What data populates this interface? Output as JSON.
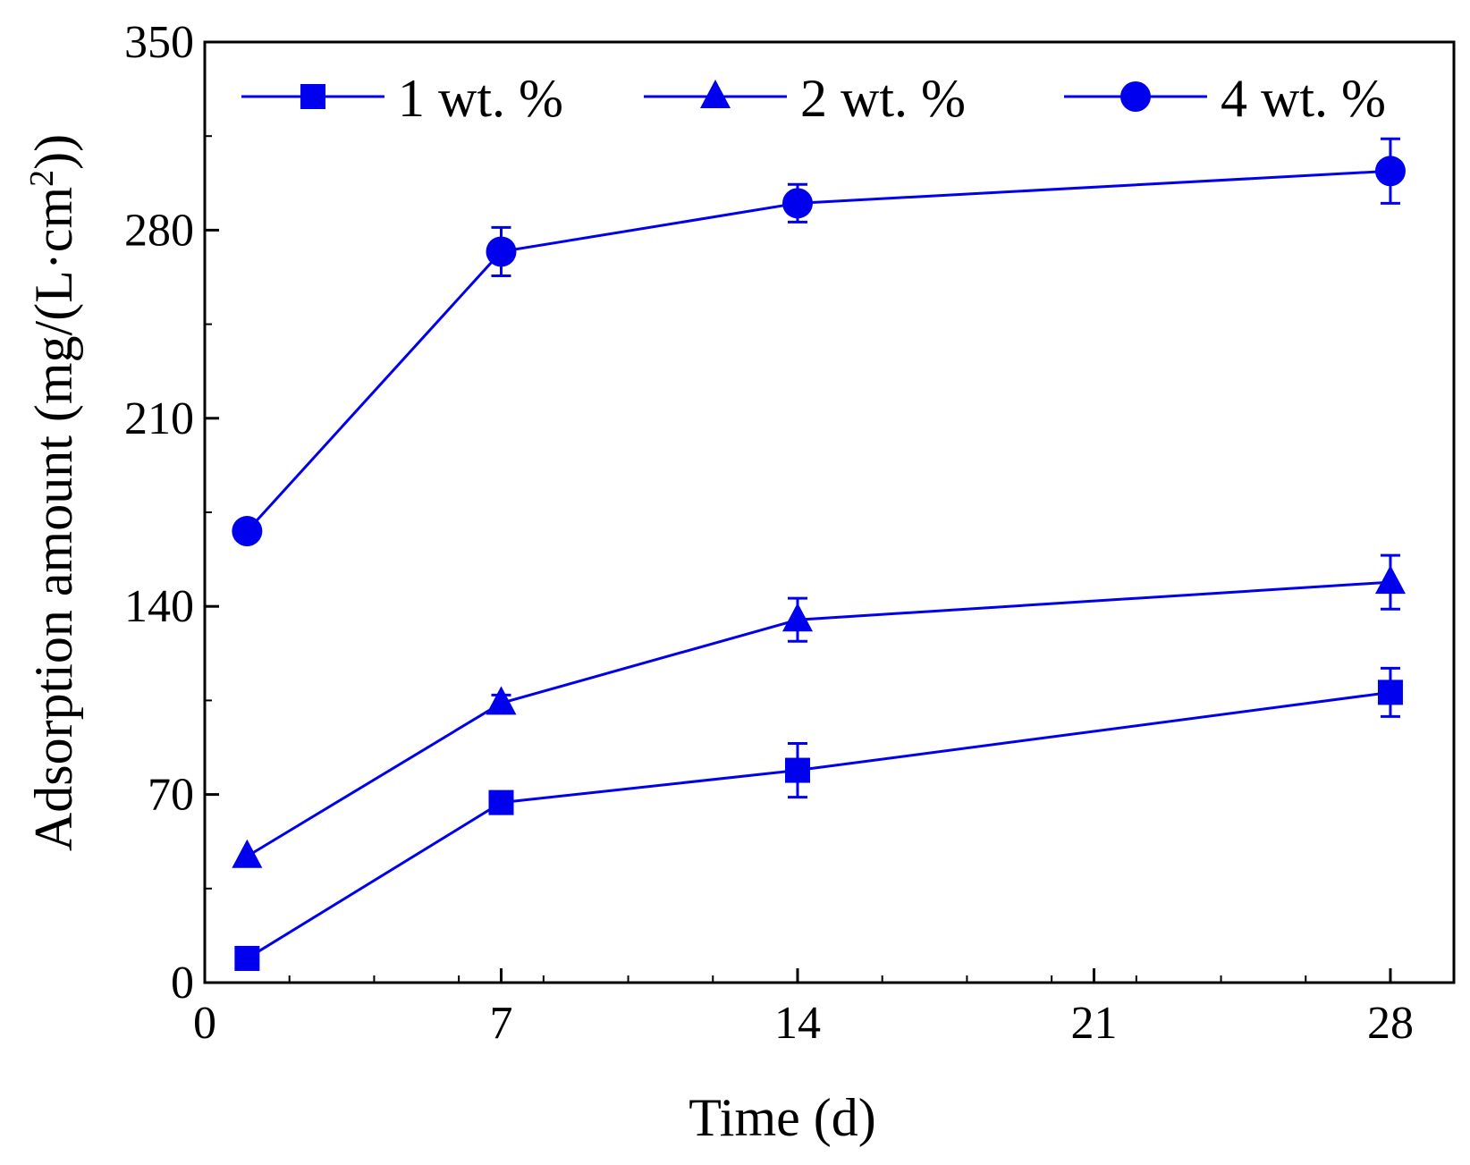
{
  "chart_data": {
    "type": "line",
    "title": "",
    "xlabel": "Time (d)",
    "ylabel": "Adsorption amount (mg/(L·cm²))",
    "ylabel_parts": {
      "before": "Adsorption amount (mg/(L",
      "dot": "·",
      "unit": "cm",
      "sup": "2",
      "after": "))"
    },
    "xlim": [
      0,
      29.5
    ],
    "ylim": [
      0,
      350
    ],
    "x_ticks": [
      0,
      7,
      14,
      21,
      28
    ],
    "x_tick_labels": [
      "0",
      "7",
      "14",
      "21",
      "28"
    ],
    "y_ticks": [
      0,
      70,
      140,
      210,
      280,
      350
    ],
    "y_tick_labels": [
      "0",
      "70",
      "140",
      "210",
      "280",
      "350"
    ],
    "x_minor_step": 2,
    "y_minor_step": 35,
    "grid": false,
    "legend_position": "top",
    "series": [
      {
        "name": "1 wt. %",
        "marker": "square",
        "x": [
          1,
          7,
          14,
          28
        ],
        "y": [
          9,
          67,
          79,
          108
        ],
        "err": [
          0,
          3,
          10,
          9
        ]
      },
      {
        "name": "2 wt. %",
        "marker": "triangle",
        "x": [
          1,
          7,
          14,
          28
        ],
        "y": [
          47,
          104,
          135,
          149
        ],
        "err": [
          0,
          3,
          8,
          10
        ]
      },
      {
        "name": "4 wt. %",
        "marker": "circle",
        "x": [
          1,
          7,
          14,
          28
        ],
        "y": [
          168,
          272,
          290,
          302
        ],
        "err": [
          3,
          9,
          7,
          12
        ]
      }
    ],
    "colors": {
      "series": "#0000ee",
      "axis": "#000000",
      "background": "#ffffff"
    }
  }
}
